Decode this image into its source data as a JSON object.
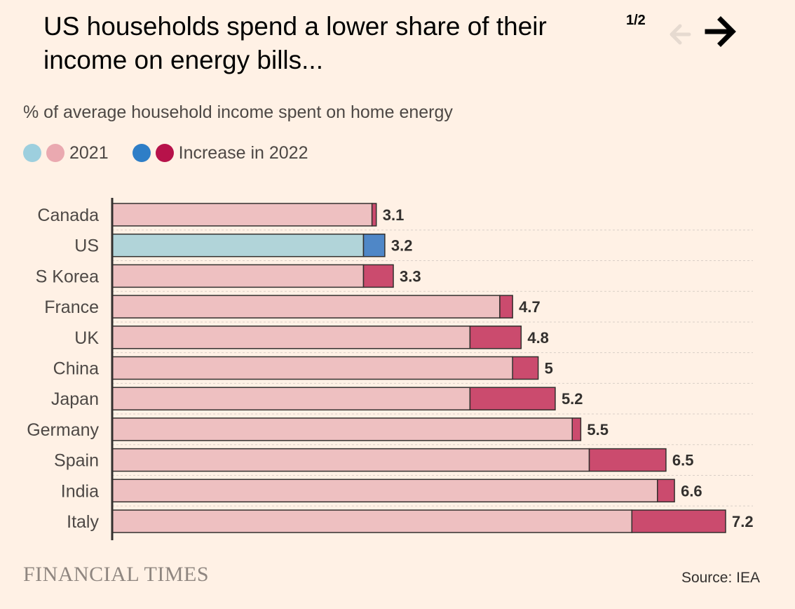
{
  "header": {
    "title": "US households spend a lower share of their income on energy bills...",
    "pager": "1/2",
    "prev_icon": "arrow-left-icon",
    "next_icon": "arrow-right-icon"
  },
  "subtitle": "% of average household income spent on home energy",
  "legend": {
    "base_label": "2021",
    "increase_label": "Increase in 2022"
  },
  "colors": {
    "us_base": "#b1d4d9",
    "us_increase": "#4f87c7",
    "other_base": "#eec0c1",
    "other_increase": "#cb4b6e",
    "legend_dot_blue_light": "#9dcfde",
    "legend_dot_pink_light": "#eaa9b0",
    "legend_dot_blue": "#2e7ec7",
    "legend_dot_red": "#b7124a",
    "bar_stroke": "#33302e"
  },
  "chart_data": {
    "type": "bar",
    "orientation": "horizontal",
    "stacked": true,
    "categories": [
      "Canada",
      "US",
      "S Korea",
      "France",
      "UK",
      "China",
      "Japan",
      "Germany",
      "Spain",
      "India",
      "Italy"
    ],
    "series": [
      {
        "name": "2021",
        "values": [
          3.05,
          2.95,
          2.95,
          4.55,
          4.2,
          4.7,
          4.2,
          5.4,
          5.6,
          6.4,
          6.1
        ]
      },
      {
        "name": "Increase in 2022",
        "values": [
          0.05,
          0.25,
          0.35,
          0.15,
          0.6,
          0.3,
          1.0,
          0.1,
          0.9,
          0.2,
          1.1
        ]
      }
    ],
    "totals": [
      "3.1",
      "3.2",
      "3.3",
      "4.7",
      "4.8",
      "5",
      "5.2",
      "5.5",
      "6.5",
      "6.6",
      "7.2"
    ],
    "highlight": "US",
    "xlim": [
      0,
      7.2
    ],
    "grid": true,
    "legend_position": "top-left",
    "source": "Source: IEA",
    "brand": "FINANCIAL TIMES"
  }
}
